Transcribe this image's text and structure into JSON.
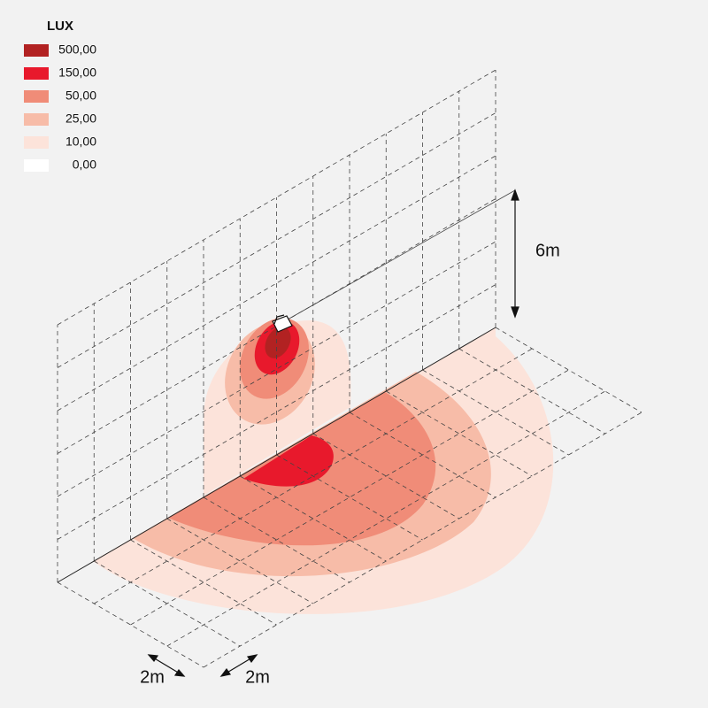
{
  "legend": {
    "title": "LUX",
    "items": [
      {
        "label": "500,00",
        "color": "#b22222"
      },
      {
        "label": "150,00",
        "color": "#e8192c"
      },
      {
        "label": "50,00",
        "color": "#f08c78"
      },
      {
        "label": "25,00",
        "color": "#f7bca8"
      },
      {
        "label": "10,00",
        "color": "#fce3da"
      },
      {
        "label": "0,00",
        "color": "#ffffff"
      }
    ]
  },
  "dimensions": {
    "height": "6m",
    "grid_x": "2m",
    "grid_y": "2m"
  }
}
